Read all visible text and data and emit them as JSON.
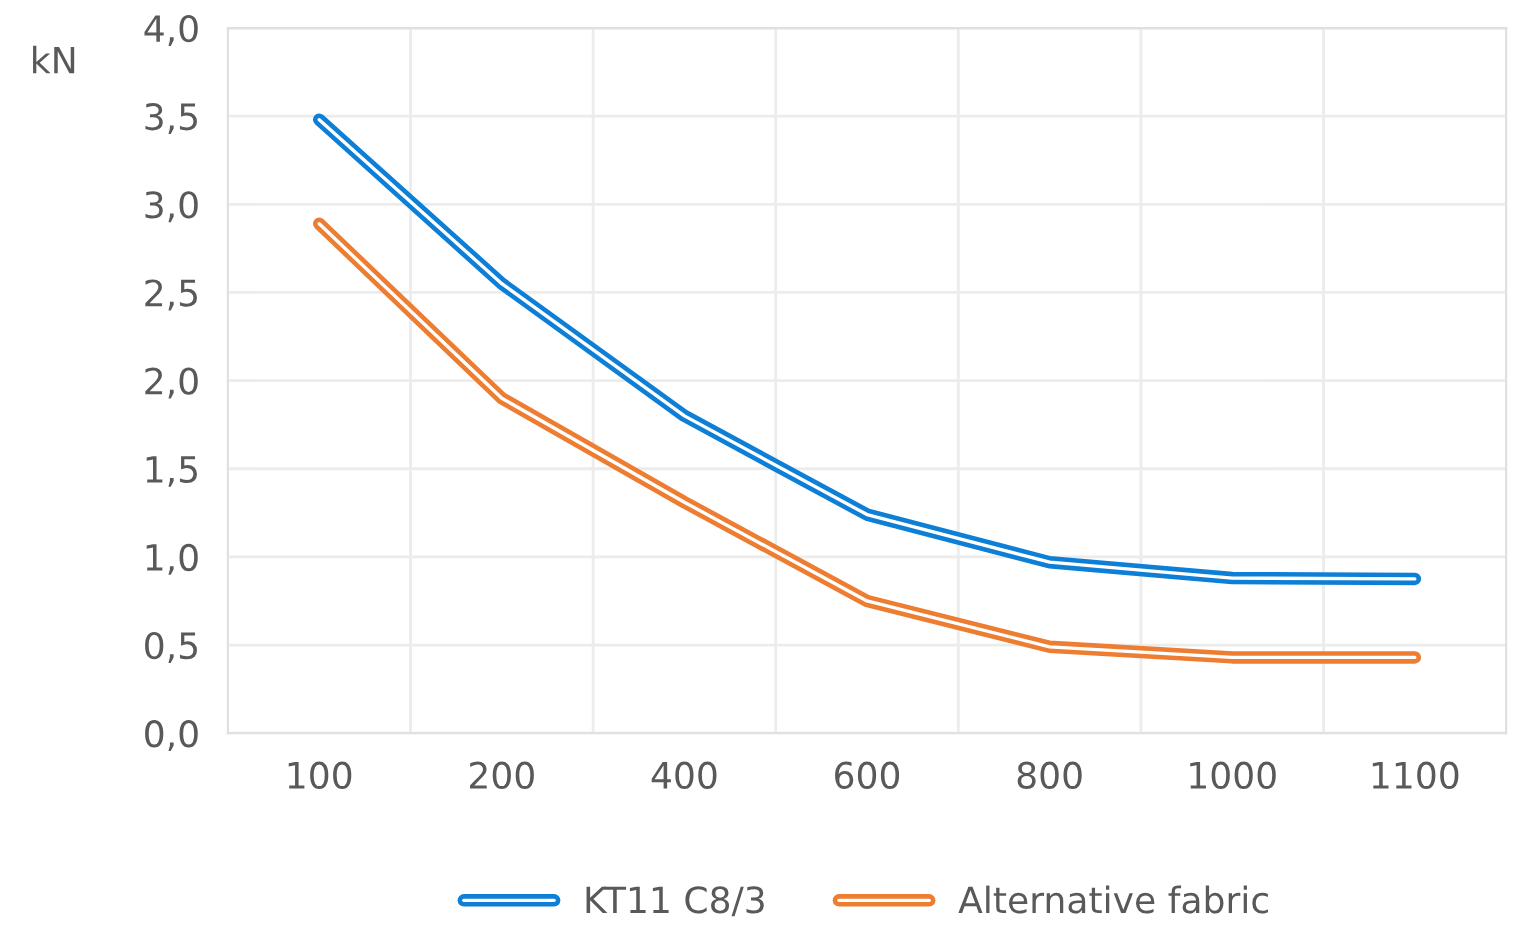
{
  "chart_data": {
    "type": "line",
    "ylabel": "kN",
    "categories": [
      "100",
      "200",
      "400",
      "600",
      "800",
      "1000",
      "1100"
    ],
    "series": [
      {
        "name": "KT11 C8/3",
        "color": "#0e7fd6",
        "values": [
          3.48,
          2.55,
          1.8,
          1.24,
          0.97,
          0.88,
          0.875
        ]
      },
      {
        "name": "Alternative fabric",
        "color": "#ed7d31",
        "values": [
          2.89,
          1.9,
          1.31,
          0.75,
          0.49,
          0.43,
          0.43
        ]
      }
    ],
    "ylim": [
      0,
      4
    ],
    "yticks": [
      {
        "value": 0,
        "label": "0,0"
      },
      {
        "value": 0.5,
        "label": "0,5"
      },
      {
        "value": 1,
        "label": "1,0"
      },
      {
        "value": 1.5,
        "label": "1,5"
      },
      {
        "value": 2,
        "label": "2,0"
      },
      {
        "value": 2.5,
        "label": "2,5"
      },
      {
        "value": 3,
        "label": "3,0"
      },
      {
        "value": 3.5,
        "label": "3,5"
      },
      {
        "value": 4,
        "label": "4,0"
      }
    ],
    "grid": true,
    "legend": "bottom",
    "marker": "none",
    "line_style": "solid"
  }
}
